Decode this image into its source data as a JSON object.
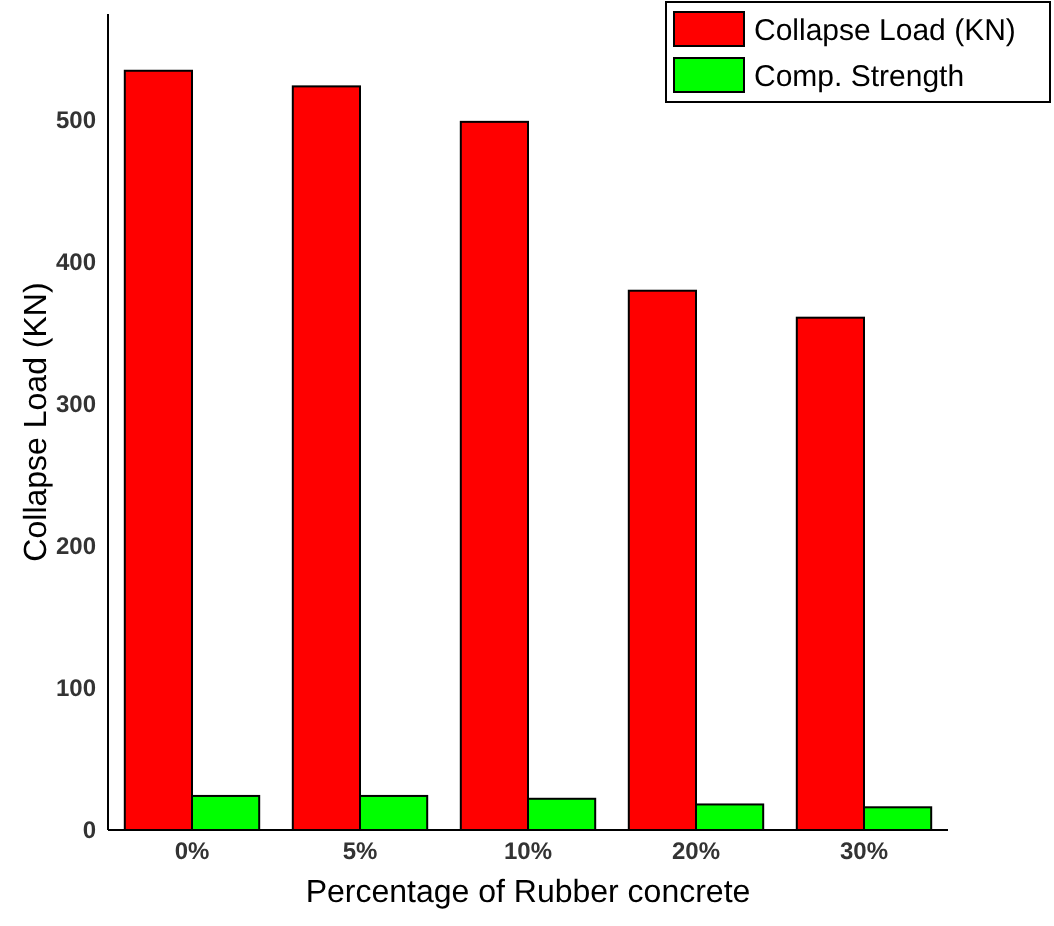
{
  "chart_data": {
    "type": "bar",
    "xlabel": "Percentage of Rubber concrete",
    "ylabel": "Collapse Load (KN)",
    "categories": [
      "0%",
      "5%",
      "10%",
      "20%",
      "30%"
    ],
    "series": [
      {
        "name": "Collapse Load (KN)",
        "color": "#ff0000",
        "values": [
          535,
          524,
          499,
          380,
          361
        ]
      },
      {
        "name": "Comp. Strength",
        "color": "#00ff00",
        "values": [
          24,
          24,
          22,
          18,
          16
        ]
      }
    ],
    "ylim": [
      0,
      575
    ],
    "yticks": [
      0,
      100,
      200,
      300,
      400,
      500
    ],
    "grid": false,
    "legend": "top right"
  }
}
